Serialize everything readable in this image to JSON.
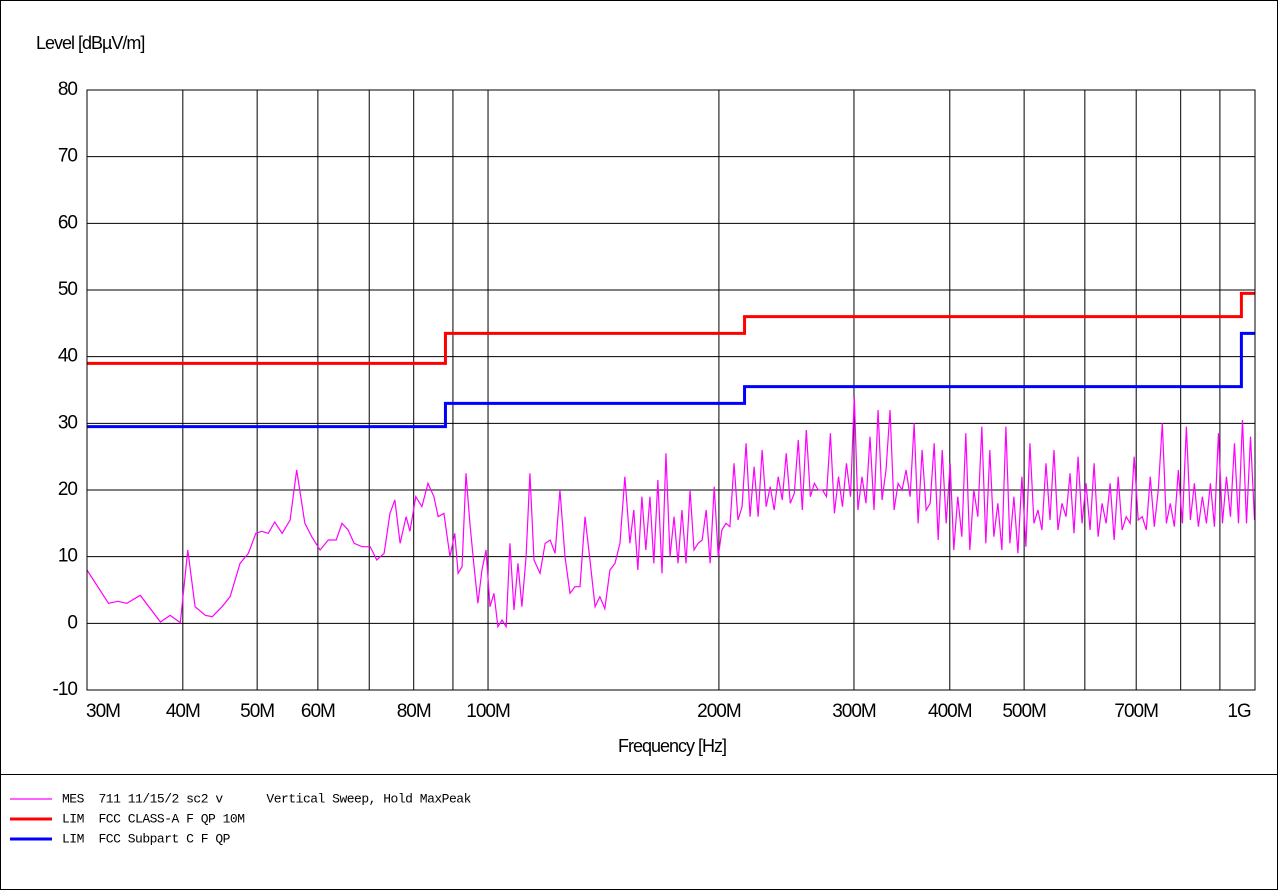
{
  "chart_data": {
    "type": "line",
    "ylabel": "Level [dBµV/m]",
    "xlabel": "Frequency [Hz]",
    "xlog": true,
    "grid": true,
    "xlim": [
      30000000.0,
      1000000000.0
    ],
    "ylim": [
      -10,
      80
    ],
    "yticks": [
      -10,
      0,
      10,
      20,
      30,
      40,
      50,
      60,
      70,
      80
    ],
    "xticks": [
      {
        "value": 30000000.0,
        "label": "30M"
      },
      {
        "value": 40000000.0,
        "label": "40M"
      },
      {
        "value": 50000000.0,
        "label": "50M"
      },
      {
        "value": 60000000.0,
        "label": "60M"
      },
      {
        "value": 80000000.0,
        "label": "80M"
      },
      {
        "value": 100000000.0,
        "label": "100M"
      },
      {
        "value": 200000000.0,
        "label": "200M"
      },
      {
        "value": 300000000.0,
        "label": "300M"
      },
      {
        "value": 400000000.0,
        "label": "400M"
      },
      {
        "value": 500000000.0,
        "label": "500M"
      },
      {
        "value": 700000000.0,
        "label": "700M"
      },
      {
        "value": 1000000000.0,
        "label": "1G"
      }
    ],
    "x_minor_grid": [
      70000000.0,
      90000000.0,
      600000000.0,
      800000000.0,
      900000000.0
    ],
    "series": [
      {
        "name": "MES  711 11/15/2 sc2 v      Vertical Sweep, Hold MaxPeak",
        "color": "#ff00ff",
        "width": 1.2,
        "x": [
          30000000.0,
          32000000.0,
          32900000.0,
          33800000.0,
          35200000.0,
          37400000.0,
          38500000.0,
          39700000.0,
          40600000.0,
          41500000.0,
          42800000.0,
          43700000.0,
          45000000.0,
          46100000.0,
          47500000.0,
          48700000.0,
          49800000.0,
          50700000.0,
          51700000.0,
          52700000.0,
          53900000.0,
          55200000.0,
          56300000.0,
          57700000.0,
          58900000.0,
          60400000.0,
          61900000.0,
          63400000.0,
          64500000.0,
          65700000.0,
          66900000.0,
          68500000.0,
          70200000.0,
          71600000.0,
          73200000.0,
          74500000.0,
          75600000.0,
          76800000.0,
          78200000.0,
          79100000.0,
          80500000.0,
          82000000.0,
          83500000.0,
          85000000.0,
          86100000.0,
          87600000.0,
          89200000.0,
          90500000.0,
          91400000.0,
          92500000.0,
          93600000.0,
          94700000.0,
          95800000.0,
          97000000.0,
          98200000.0,
          99400000.0,
          100600000.0,
          101800000.0,
          103000000.0,
          104300000.0,
          105600000.0,
          106800000.0,
          108100000.0,
          109400000.0,
          110700000.0,
          112100000.0,
          113400000.0,
          114800000.0,
          116900000.0,
          118700000.0,
          120500000.0,
          122300000.0,
          124100000.0,
          126000000.0,
          127900000.0,
          129800000.0,
          131800000.0,
          133800000.0,
          135800000.0,
          137900000.0,
          139900000.0,
          142000000.0,
          144200000.0,
          146400000.0,
          148600000.0,
          150800000.0,
          153100000.0,
          154900000.0,
          156800000.0,
          158700000.0,
          160600000.0,
          162600000.0,
          164500000.0,
          166500000.0,
          168600000.0,
          170600000.0,
          172700000.0,
          174800000.0,
          176900000.0,
          179000000.0,
          181200000.0,
          183400000.0,
          185600000.0,
          187900000.0,
          190200000.0,
          192500000.0,
          194800000.0,
          197200000.0,
          199600000.0,
          201800000.0,
          204300000.0,
          206700000.0,
          209300000.0,
          211800000.0,
          214400000.0,
          217000000.0,
          219600000.0,
          222300000.0,
          225000000.0,
          227700000.0,
          230500000.0,
          233300000.0,
          236100000.0,
          239000000.0,
          241900000.0,
          244800000.0,
          247800000.0,
          250800000.0,
          253800000.0,
          256900000.0,
          260000000.0,
          263200000.0,
          266400000.0,
          269600000.0,
          272900000.0,
          276200000.0,
          279500000.0,
          282900000.0,
          286400000.0,
          289800000.0,
          293300000.0,
          296900000.0,
          300300000.0,
          303600000.0,
          307300000.0,
          311000000.0,
          314800000.0,
          318600000.0,
          322500000.0,
          326400000.0,
          330300000.0,
          334300000.0,
          338400000.0,
          342500000.0,
          346600000.0,
          350800000.0,
          355100000.0,
          359400000.0,
          363700000.0,
          368100000.0,
          372600000.0,
          377100000.0,
          381700000.0,
          386300000.0,
          391000000.0,
          395700000.0,
          400500000.0,
          404800000.0,
          409700000.0,
          414700000.0,
          419700000.0,
          424800000.0,
          429900000.0,
          435100000.0,
          440400000.0,
          445700000.0,
          451100000.0,
          456600000.0,
          462100000.0,
          467700000.0,
          473400000.0,
          479100000.0,
          484900000.0,
          490800000.0,
          496700000.0,
          502700000.0,
          508800000.0,
          515000000.0,
          521200000.0,
          527500000.0,
          533900000.0,
          540400000.0,
          546900000.0,
          553500000.0,
          560200000.0,
          567000000.0,
          573900000.0,
          580800000.0,
          587900000.0,
          595000000.0,
          602200000.0,
          609500000.0,
          616900000.0,
          624400000.0,
          631900000.0,
          639600000.0,
          647300000.0,
          655200000.0,
          663100000.0,
          671100000.0,
          679300000.0,
          687500000.0,
          695800000.0,
          704300000.0,
          712800000.0,
          721500000.0,
          730200000.0,
          739100000.0,
          748000000.0,
          757100000.0,
          766300000.0,
          775500000.0,
          784900000.0,
          794400000.0,
          804100000.0,
          813800000.0,
          823700000.0,
          833600000.0,
          843700000.0,
          853900000.0,
          864300000.0,
          874700000.0,
          885300000.0,
          896000000.0,
          906900000.0,
          917900000.0,
          929000000.0,
          940200000.0,
          951600000.0,
          963100000.0,
          974800000.0,
          986600000.0,
          998500000.0
        ],
        "values": [
          8,
          3,
          3.3,
          3,
          4.2,
          0.2,
          1.2,
          0.1,
          11,
          2.5,
          1.2,
          1,
          2.5,
          4,
          9,
          10.5,
          13.5,
          13.8,
          13.5,
          15.2,
          13.5,
          15.5,
          23,
          15,
          13,
          11,
          12.5,
          12.5,
          15,
          14,
          12,
          11.5,
          11.5,
          9.5,
          10.5,
          16.5,
          18.5,
          12,
          16,
          13.8,
          19,
          17.5,
          21,
          19,
          16,
          16.5,
          10,
          13.5,
          7.5,
          8.5,
          22.5,
          15,
          9,
          3,
          8,
          11,
          2.5,
          4.5,
          -0.5,
          0.5,
          -0.5,
          12,
          2,
          9,
          2.5,
          10,
          22.5,
          9.5,
          7.5,
          12,
          12.5,
          10.5,
          20,
          10,
          4.5,
          5.5,
          5.5,
          16,
          9.5,
          2.5,
          4,
          2.2,
          8,
          9,
          12,
          22,
          12,
          17,
          8,
          19,
          11,
          19,
          9,
          21.5,
          7.5,
          25.5,
          10,
          16,
          9,
          17,
          9,
          20,
          11,
          12,
          12.5,
          17,
          9,
          20.5,
          10,
          14,
          15,
          14.5,
          24,
          15.5,
          17.5,
          27,
          16,
          23.5,
          16,
          26,
          17.5,
          20.5,
          17,
          22,
          18.5,
          25.5,
          18,
          19.5,
          27.5,
          17,
          29,
          19,
          21,
          20,
          20,
          19,
          28.5,
          16.5,
          22,
          17.5,
          24,
          19,
          34,
          17,
          22,
          18,
          28,
          17,
          32,
          18.5,
          23,
          32,
          17,
          21,
          20,
          23,
          19,
          30,
          15,
          26,
          17,
          18,
          27,
          12.5,
          26,
          15,
          24,
          11,
          19,
          13,
          28.5,
          11,
          20,
          16,
          29.5,
          12,
          26,
          13,
          18,
          11,
          29.5,
          12,
          19,
          10.5,
          22,
          11.5,
          27,
          15,
          17,
          14,
          24,
          15.5,
          26,
          14,
          18,
          16,
          22.5,
          13.5,
          25,
          15,
          21,
          14,
          24,
          13,
          18,
          15,
          21,
          12.5,
          22,
          14,
          16,
          15,
          25,
          15.5,
          16,
          14,
          22,
          14.5,
          20,
          30,
          15,
          18,
          14.5,
          23,
          15,
          29.5,
          15.5,
          21,
          14.5,
          19,
          15,
          21,
          14.5,
          28.5,
          15,
          22,
          16,
          27,
          15,
          30.5,
          15,
          28,
          15.5
        ]
      },
      {
        "name": "LIM  FCC CLASS-A F QP 10M",
        "color": "#ff0000",
        "width": 3,
        "x": [
          30000000.0,
          88000000.0,
          88000000.0,
          216000000.0,
          216000000.0,
          960000000.0,
          960000000.0,
          1000000000.0
        ],
        "values": [
          39,
          39,
          43.5,
          43.5,
          46,
          46,
          49.5,
          49.5
        ]
      },
      {
        "name": "LIM  FCC Subpart C F QP",
        "color": "#0000ff",
        "width": 3,
        "x": [
          30000000.0,
          88000000.0,
          88000000.0,
          216000000.0,
          216000000.0,
          960000000.0,
          960000000.0,
          1000000000.0
        ],
        "values": [
          29.5,
          29.5,
          33,
          33,
          35.5,
          35.5,
          43.5,
          43.5
        ]
      }
    ]
  }
}
